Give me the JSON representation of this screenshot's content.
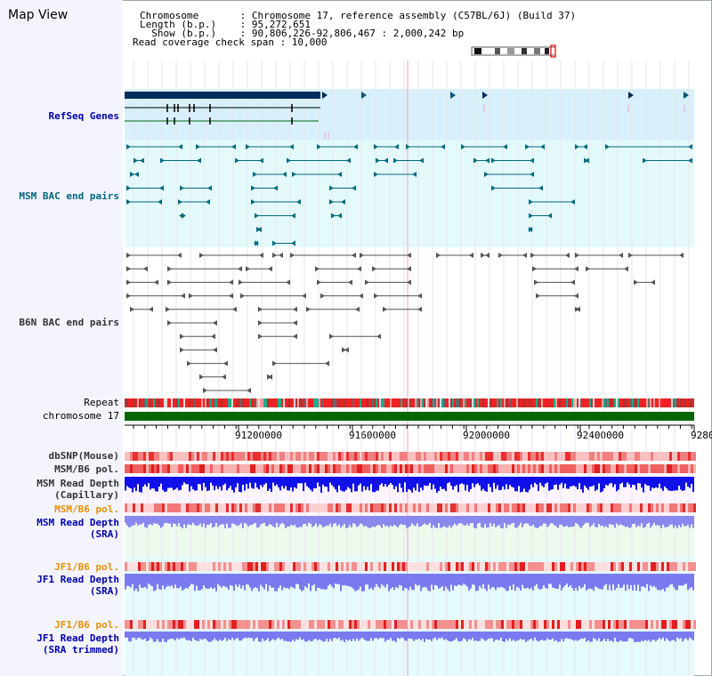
{
  "header": {
    "title": "Map View",
    "info_lines": [
      "Chromosome       : Chromosome 17, reference assembly (C57BL/6J) (Build 37)",
      "Length (b.p.)    : 95,272,651",
      "  Show (b.p.)    : 90,806,226-92,806,467 : 2,000,242 bp",
      "Read coverage check span : 10,000"
    ]
  },
  "tracks": {
    "refseq": "RefSeq Genes",
    "msm_bac": "MSM BAC end pairs",
    "b6n_bac": "B6N BAC end pairs",
    "repeat": "Repeat",
    "chromosome": "chromosome 17",
    "dbsnp": "dbSNP(Mouse)",
    "msm_b6_pol_1": "MSM/B6 pol.",
    "msm_depth_cap_1": "MSM Read Depth",
    "msm_depth_cap_2": "(Capillary)",
    "msm_b6_pol_2": "MSM/B6 pol.",
    "msm_depth_sra_1": "MSM Read Depth",
    "msm_depth_sra_2": "(SRA)",
    "jf1_pol_1": "JF1/B6 pol.",
    "jf1_depth_sra_1": "JF1 Read Depth",
    "jf1_depth_sra_2": "(SRA)",
    "jf1_pol_2": "JF1/B6 pol.",
    "jf1_depth_trim_1": "JF1 Read Depth",
    "jf1_depth_trim_2": "(SRA trimmed)"
  },
  "axis": {
    "ticks": [
      "91200000",
      "91600000",
      "92000000",
      "92400000",
      "9280"
    ]
  },
  "colors": {
    "refseq_bg": "#d8f0fb",
    "msm_bg": "#e4fafa",
    "gene_dark": "#002b5c",
    "msm_feature": "#006b80",
    "b6n_feature": "#555555",
    "chromosome": "#006600",
    "depth_capillary": "#1010e8",
    "depth_sra": "#8888ee"
  }
}
